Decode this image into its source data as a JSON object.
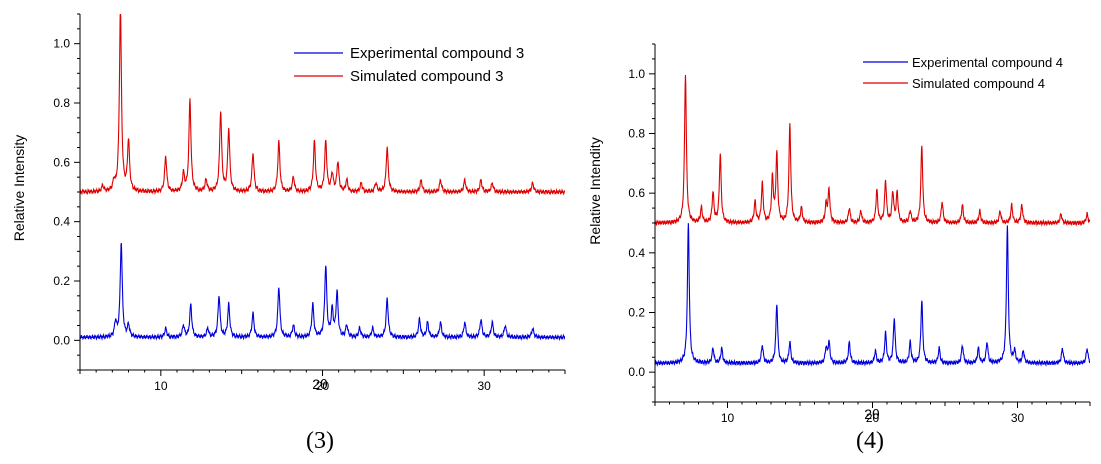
{
  "chart_data": [
    {
      "type": "line",
      "caption": "(3)",
      "xlabel": "2θ",
      "ylabel": "Relative Intensity",
      "xlim": [
        5,
        35
      ],
      "ylim": [
        -0.1,
        1.1
      ],
      "x_ticks": [
        10,
        20,
        30
      ],
      "y_ticks": [
        0.0,
        0.2,
        0.4,
        0.6,
        0.8,
        1.0
      ],
      "y_tick_labels": [
        "0.0",
        "0.2",
        "0.4",
        "0.6",
        "0.8",
        "1.0"
      ],
      "legend_position": "top-right",
      "grid": false,
      "series": [
        {
          "name": "Experimental compound 3",
          "color": "#0000dd",
          "baseline": 0.01,
          "peaks": [
            [
              7.2,
              0.05
            ],
            [
              7.55,
              0.32
            ],
            [
              8.0,
              0.04
            ],
            [
              10.3,
              0.03
            ],
            [
              11.4,
              0.04
            ],
            [
              11.85,
              0.11
            ],
            [
              12.9,
              0.03
            ],
            [
              13.6,
              0.14
            ],
            [
              14.2,
              0.11
            ],
            [
              15.7,
              0.08
            ],
            [
              17.3,
              0.17
            ],
            [
              18.2,
              0.04
            ],
            [
              19.4,
              0.11
            ],
            [
              20.2,
              0.24
            ],
            [
              20.6,
              0.09
            ],
            [
              20.9,
              0.15
            ],
            [
              21.5,
              0.04
            ],
            [
              22.3,
              0.03
            ],
            [
              23.1,
              0.03
            ],
            [
              24.0,
              0.13
            ],
            [
              26.0,
              0.06
            ],
            [
              26.5,
              0.05
            ],
            [
              27.3,
              0.05
            ],
            [
              28.8,
              0.05
            ],
            [
              29.8,
              0.06
            ],
            [
              30.5,
              0.05
            ],
            [
              31.3,
              0.04
            ],
            [
              33.0,
              0.03
            ]
          ]
        },
        {
          "name": "Simulated compound 3",
          "color": "#dd0000",
          "baseline": 0.5,
          "peaks": [
            [
              6.4,
              0.02
            ],
            [
              7.1,
              0.03
            ],
            [
              7.5,
              0.62
            ],
            [
              8.0,
              0.17
            ],
            [
              10.3,
              0.12
            ],
            [
              11.4,
              0.06
            ],
            [
              11.8,
              0.31
            ],
            [
              12.8,
              0.04
            ],
            [
              13.7,
              0.27
            ],
            [
              14.2,
              0.21
            ],
            [
              15.7,
              0.13
            ],
            [
              17.3,
              0.17
            ],
            [
              18.2,
              0.05
            ],
            [
              19.5,
              0.17
            ],
            [
              20.2,
              0.17
            ],
            [
              20.6,
              0.06
            ],
            [
              20.95,
              0.1
            ],
            [
              21.5,
              0.04
            ],
            [
              22.4,
              0.03
            ],
            [
              23.3,
              0.03
            ],
            [
              24.0,
              0.15
            ],
            [
              26.1,
              0.04
            ],
            [
              27.3,
              0.04
            ],
            [
              28.8,
              0.04
            ],
            [
              29.8,
              0.04
            ],
            [
              30.5,
              0.03
            ],
            [
              33.0,
              0.03
            ]
          ]
        }
      ]
    },
    {
      "type": "line",
      "caption": "(4)",
      "xlabel": "2θ",
      "ylabel": "Relative Intendity",
      "xlim": [
        5,
        35
      ],
      "ylim": [
        -0.1,
        1.1
      ],
      "x_ticks": [
        10,
        20,
        30
      ],
      "y_ticks": [
        0.0,
        0.2,
        0.4,
        0.6,
        0.8,
        1.0
      ],
      "y_tick_labels": [
        "0.0",
        "0.2",
        "0.4",
        "0.6",
        "0.8",
        "1.0"
      ],
      "legend_position": "top-right",
      "grid": false,
      "series": [
        {
          "name": "Experimental compound 4",
          "color": "#0000dd",
          "baseline": 0.03,
          "peaks": [
            [
              7.3,
              0.47
            ],
            [
              9.0,
              0.05
            ],
            [
              9.6,
              0.05
            ],
            [
              12.4,
              0.06
            ],
            [
              13.4,
              0.2
            ],
            [
              14.3,
              0.07
            ],
            [
              16.8,
              0.05
            ],
            [
              17.0,
              0.07
            ],
            [
              18.4,
              0.07
            ],
            [
              20.2,
              0.04
            ],
            [
              20.9,
              0.1
            ],
            [
              21.5,
              0.15
            ],
            [
              22.6,
              0.07
            ],
            [
              23.4,
              0.21
            ],
            [
              24.6,
              0.05
            ],
            [
              26.2,
              0.06
            ],
            [
              27.3,
              0.05
            ],
            [
              27.9,
              0.07
            ],
            [
              29.3,
              0.46
            ],
            [
              29.8,
              0.04
            ],
            [
              30.4,
              0.04
            ],
            [
              33.1,
              0.05
            ],
            [
              34.8,
              0.05
            ]
          ]
        },
        {
          "name": "Simulated compound 4",
          "color": "#dd0000",
          "baseline": 0.5,
          "peaks": [
            [
              7.1,
              0.5
            ],
            [
              8.2,
              0.05
            ],
            [
              9.0,
              0.1
            ],
            [
              9.5,
              0.23
            ],
            [
              11.9,
              0.07
            ],
            [
              12.4,
              0.13
            ],
            [
              13.1,
              0.15
            ],
            [
              13.4,
              0.23
            ],
            [
              14.3,
              0.33
            ],
            [
              15.1,
              0.05
            ],
            [
              16.8,
              0.06
            ],
            [
              17.0,
              0.11
            ],
            [
              18.4,
              0.05
            ],
            [
              19.2,
              0.04
            ],
            [
              20.3,
              0.11
            ],
            [
              20.9,
              0.14
            ],
            [
              21.4,
              0.1
            ],
            [
              21.7,
              0.1
            ],
            [
              22.6,
              0.04
            ],
            [
              23.4,
              0.26
            ],
            [
              24.8,
              0.07
            ],
            [
              26.2,
              0.06
            ],
            [
              27.4,
              0.04
            ],
            [
              28.8,
              0.04
            ],
            [
              29.6,
              0.06
            ],
            [
              30.3,
              0.06
            ],
            [
              33.0,
              0.03
            ],
            [
              34.8,
              0.03
            ]
          ]
        }
      ]
    }
  ]
}
